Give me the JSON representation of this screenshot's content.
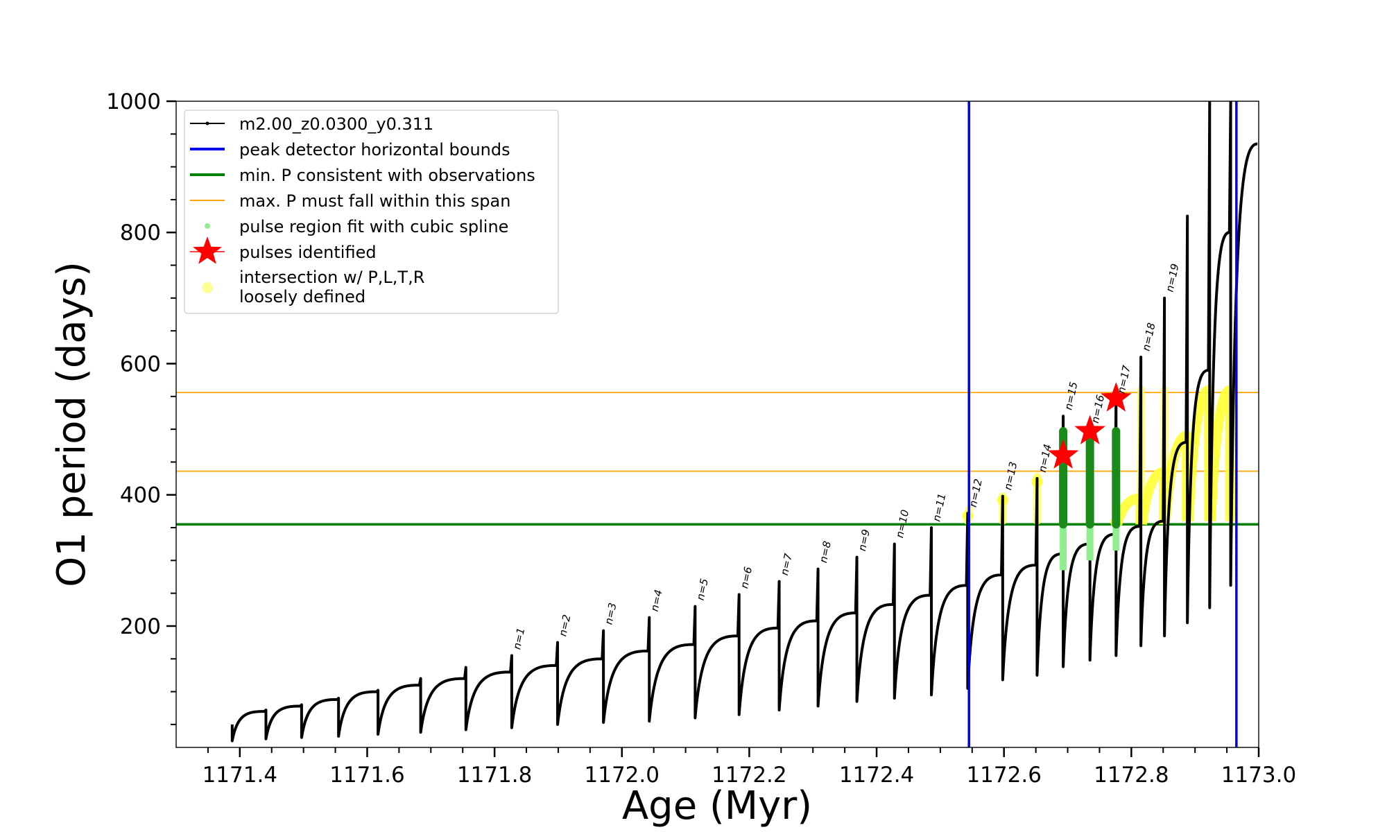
{
  "chart_data": {
    "type": "line",
    "xlabel": "Age (Myr)",
    "ylabel": "O1 period (days)",
    "xlim": [
      1171.3,
      1173.0
    ],
    "ylim": [
      15,
      1000
    ],
    "x_ticks": [
      1171.4,
      1171.6,
      1171.8,
      1172.0,
      1172.2,
      1172.4,
      1172.6,
      1172.8,
      1173.0
    ],
    "x_tick_labels": [
      "1171.4",
      "1171.6",
      "1171.8",
      "1172.0",
      "1172.2",
      "1172.4",
      "1172.6",
      "1172.8",
      "1173.0"
    ],
    "y_ticks": [
      200,
      400,
      600,
      800,
      1000
    ],
    "y_tick_labels": [
      "200",
      "400",
      "600",
      "800",
      "1000"
    ],
    "grid": false,
    "legend_position": "top-left",
    "legend": [
      {
        "label": "m2.00_z0.0300_y0.311",
        "style": "line-dot",
        "color": "#000000"
      },
      {
        "label": "peak detector horizontal bounds",
        "style": "line",
        "color": "#0000ee"
      },
      {
        "label": "min. P consistent with observations",
        "style": "line",
        "color": "#008000"
      },
      {
        "label": "max. P must fall within this span",
        "style": "thin-line",
        "color": "#ffa500"
      },
      {
        "label": "pulse region fit with cubic spline",
        "style": "dot",
        "color": "#90ee90"
      },
      {
        "label": "pulses identified",
        "style": "star",
        "color": "#ff0000"
      },
      {
        "label": "intersection w/ P,L,T,R",
        "label2": "loosely defined",
        "style": "circle",
        "color": "#ffff66"
      }
    ],
    "vertical_bounds": [
      1172.545,
      1172.965
    ],
    "min_P": 355,
    "max_P_span": [
      436,
      556
    ],
    "pulses": [
      {
        "n": "n=1",
        "age": 1171.827,
        "p_before": 130,
        "p_peak": 155,
        "p_after": 45
      },
      {
        "n": "n=2",
        "age": 1171.899,
        "p_before": 140,
        "p_peak": 175,
        "p_after": 50
      },
      {
        "n": "n=3",
        "age": 1171.971,
        "p_before": 150,
        "p_peak": 193,
        "p_after": 53
      },
      {
        "n": "n=4",
        "age": 1172.043,
        "p_before": 162,
        "p_peak": 213,
        "p_after": 55
      },
      {
        "n": "n=5",
        "age": 1172.115,
        "p_before": 172,
        "p_peak": 230,
        "p_after": 60
      },
      {
        "n": "n=6",
        "age": 1172.184,
        "p_before": 185,
        "p_peak": 248,
        "p_after": 65
      },
      {
        "n": "n=7",
        "age": 1172.247,
        "p_before": 197,
        "p_peak": 268,
        "p_after": 72
      },
      {
        "n": "n=8",
        "age": 1172.308,
        "p_before": 208,
        "p_peak": 287,
        "p_after": 78
      },
      {
        "n": "n=9",
        "age": 1172.369,
        "p_before": 220,
        "p_peak": 305,
        "p_after": 85
      },
      {
        "n": "n=10",
        "age": 1172.428,
        "p_before": 233,
        "p_peak": 325,
        "p_after": 90
      },
      {
        "n": "n=11",
        "age": 1172.486,
        "p_before": 247,
        "p_peak": 350,
        "p_after": 95
      },
      {
        "n": "n=12",
        "age": 1172.543,
        "p_before": 262,
        "p_peak": 372,
        "p_after": 105
      },
      {
        "n": "n=13",
        "age": 1172.598,
        "p_before": 278,
        "p_peak": 398,
        "p_after": 118
      },
      {
        "n": "n=14",
        "age": 1172.652,
        "p_before": 293,
        "p_peak": 425,
        "p_after": 125
      },
      {
        "n": "n=15",
        "age": 1172.693,
        "p_before": 310,
        "p_peak": 520,
        "p_after": 138
      },
      {
        "n": "n=16",
        "age": 1172.735,
        "p_before": 325,
        "p_peak": 500,
        "p_after": 148
      },
      {
        "n": "n=17",
        "age": 1172.776,
        "p_before": 340,
        "p_peak": 545,
        "p_after": 155
      },
      {
        "n": "n=18",
        "age": 1172.815,
        "p_before": 352,
        "p_peak": 610,
        "p_after": 170
      },
      {
        "n": "n=19",
        "age": 1172.852,
        "p_before": 360,
        "p_peak": 700,
        "p_after": 185
      }
    ],
    "late_pulses": [
      {
        "age": 1172.888,
        "p_before": 480,
        "p_peak": 825,
        "p_after": 205
      },
      {
        "age": 1172.923,
        "p_before": 590,
        "p_peak": 1000,
        "p_after": 228
      },
      {
        "age": 1172.956,
        "p_before": 800,
        "p_peak": 1000,
        "p_after": 262
      }
    ],
    "early_pulses": [
      {
        "age": 1171.388,
        "p_before": 50,
        "p_peak": 50,
        "p_after": 25
      },
      {
        "age": 1171.441,
        "p_before": 70,
        "p_peak": 72,
        "p_after": 28
      },
      {
        "age": 1171.497,
        "p_before": 78,
        "p_peak": 80,
        "p_after": 30
      },
      {
        "age": 1171.555,
        "p_before": 88,
        "p_peak": 90,
        "p_after": 32
      },
      {
        "age": 1171.617,
        "p_before": 100,
        "p_peak": 102,
        "p_after": 35
      },
      {
        "age": 1171.684,
        "p_before": 110,
        "p_peak": 120,
        "p_after": 38
      },
      {
        "age": 1171.755,
        "p_before": 120,
        "p_peak": 137,
        "p_after": 42
      }
    ],
    "final_point": {
      "age": 1173.0,
      "p": 935
    },
    "identified_pulses": [
      {
        "n": "n=15",
        "age": 1172.693,
        "p": 460
      },
      {
        "n": "n=16",
        "age": 1172.735,
        "p": 497
      },
      {
        "n": "n=17",
        "age": 1172.776,
        "p": 547
      }
    ]
  }
}
